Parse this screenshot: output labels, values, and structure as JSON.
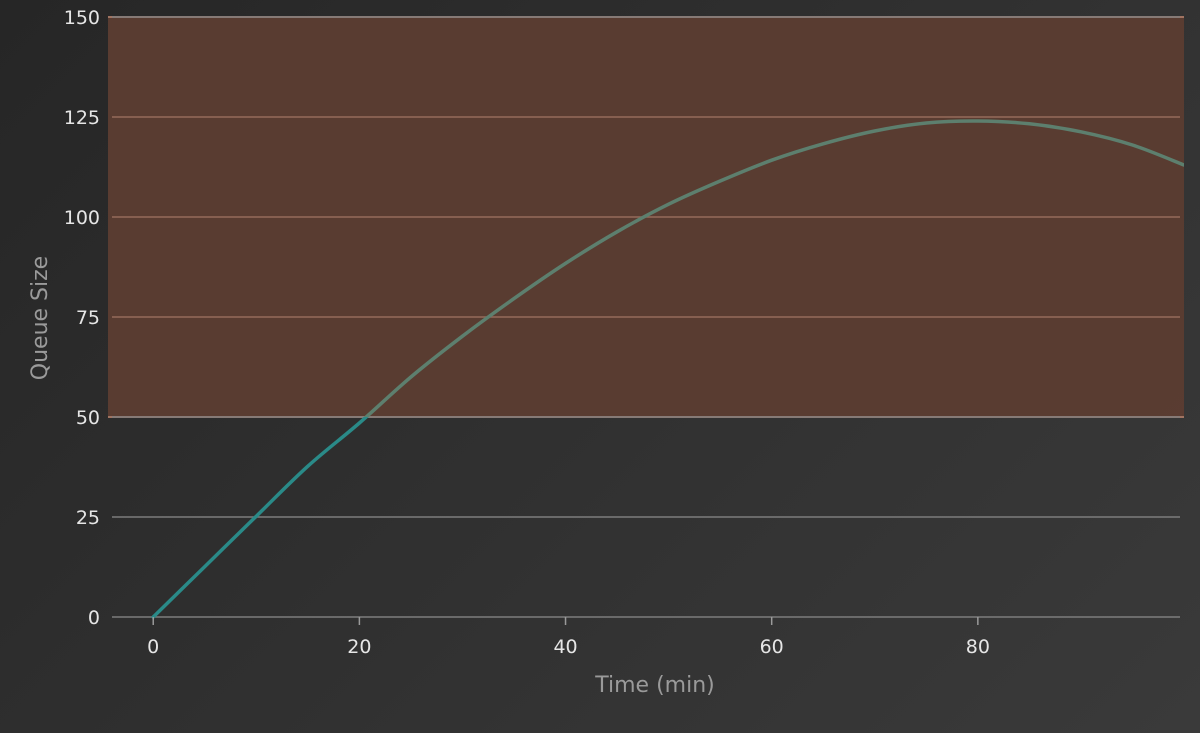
{
  "chart_data": {
    "type": "line",
    "title": "",
    "xlabel": "Time (min)",
    "ylabel": "Queue Size",
    "xlim": [
      -4,
      100
    ],
    "ylim": [
      0,
      150
    ],
    "xticks": [
      0,
      20,
      40,
      60,
      80
    ],
    "yticks": [
      0,
      25,
      50,
      75,
      100,
      125,
      150
    ],
    "grid": "horizontal",
    "threshold_band": {
      "from": 50,
      "to": 150,
      "color": "#5c3d32",
      "edge_color": "#a07462"
    },
    "colors": {
      "below_threshold": "#2a8a88",
      "above_threshold": "#5d7f6e",
      "grid": "#7d7d7d"
    },
    "series": [
      {
        "x": [
          0,
          5,
          10,
          15,
          20,
          25,
          30,
          35,
          40,
          45,
          50,
          55,
          60,
          65,
          70,
          75,
          80,
          85,
          90,
          95,
          100
        ],
        "y": [
          0,
          12.6,
          25.2,
          37.7,
          48.5,
          60,
          70.2,
          79.6,
          88.4,
          96.3,
          103.2,
          109,
          114.2,
          118.3,
          121.5,
          123.5,
          124,
          123.3,
          121.3,
          118,
          113
        ]
      }
    ]
  }
}
